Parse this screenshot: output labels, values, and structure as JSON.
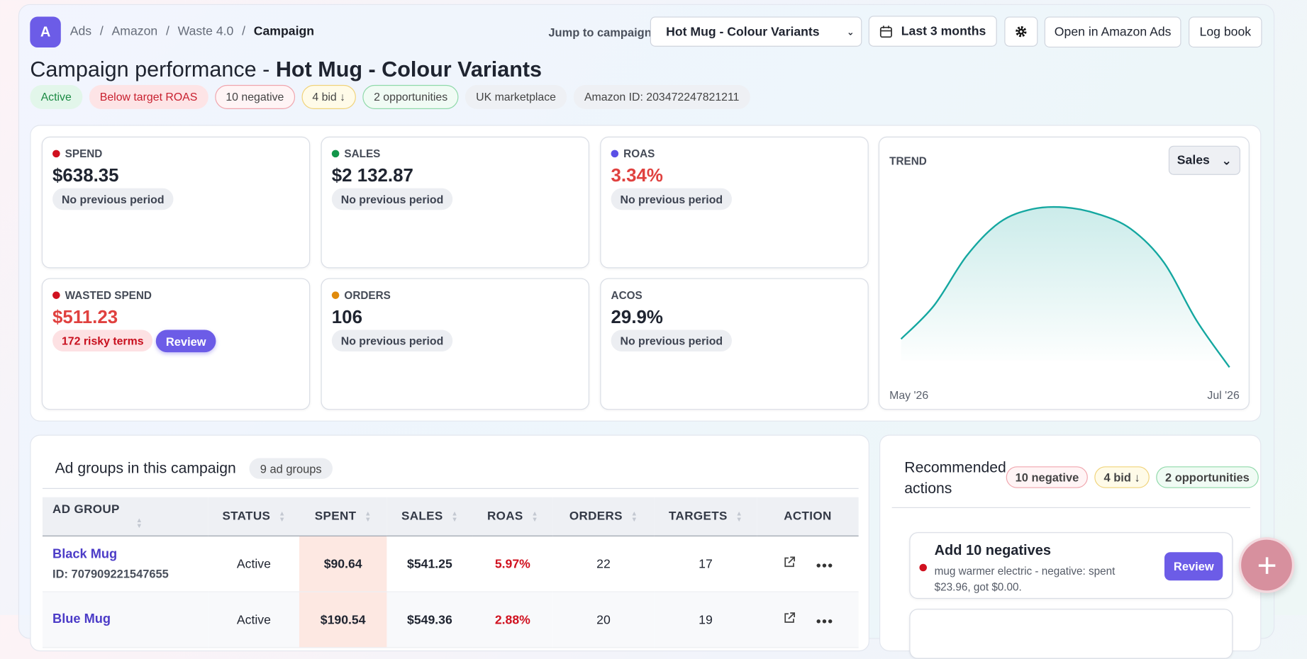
{
  "breadcrumb": {
    "avatar": "A",
    "items": [
      "Ads",
      "Amazon",
      "Waste 4.0",
      "Campaign"
    ]
  },
  "header": {
    "jump_label": "Jump to campaign",
    "campaign_select": "Hot Mug - Colour Variants",
    "date_range": "Last 3 months",
    "open_button": "Open in Amazon Ads",
    "logbook_button": "Log book"
  },
  "title": {
    "prefix": "Campaign performance - ",
    "campaign": "Hot Mug - Colour Variants"
  },
  "badges": [
    "Active",
    "Below target ROAS",
    "10 negative",
    "4 bid ↓",
    "2 opportunities",
    "UK marketplace",
    "Amazon ID: 203472247821211"
  ],
  "kpis": [
    {
      "label": "SPEND",
      "value": "$638.35",
      "note": "No previous period"
    },
    {
      "label": "SALES",
      "value": "$2 132.87",
      "note": "No previous period"
    },
    {
      "label": "ROAS",
      "value": "3.34%",
      "note": "No previous period"
    },
    {
      "label": "WASTED SPEND",
      "value": "$511.23",
      "note": "172 risky terms",
      "action": "Review"
    },
    {
      "label": "ORDERS",
      "value": "106",
      "note": "No previous period"
    },
    {
      "label": "ACOS",
      "value": "29.9%",
      "note": "No previous period"
    }
  ],
  "trend": {
    "label": "TREND",
    "metric": "Sales",
    "start": "May '26",
    "end": "Jul '26",
    "values": [
      22,
      42,
      72,
      92,
      100,
      101,
      97,
      88,
      68,
      33,
      5
    ]
  },
  "ad_groups": {
    "title": "Ad groups in this campaign",
    "count": "9 ad groups",
    "columns": [
      "AD GROUP",
      "STATUS",
      "SPENT",
      "SALES",
      "ROAS",
      "ORDERS",
      "TARGETS",
      "ACTION"
    ],
    "rows": [
      {
        "name": "Black Mug",
        "id": "ID: 707909221547655",
        "cells": [
          "Active",
          "$90.64",
          "$541.25",
          "5.97%",
          "22",
          "17"
        ]
      },
      {
        "name": "Blue Mug",
        "cells": [
          "Active",
          "$190.54",
          "$549.36",
          "2.88%",
          "20",
          "19"
        ]
      }
    ]
  },
  "recommended": {
    "title": "Recommended actions",
    "badges": [
      "10 negative",
      "4 bid ↓",
      "2 opportunities"
    ],
    "items": [
      {
        "title": "Add 10 negatives",
        "text": "mug warmer electric - negative: spent $23.96, got $0.00.",
        "action": "Review"
      }
    ]
  }
}
